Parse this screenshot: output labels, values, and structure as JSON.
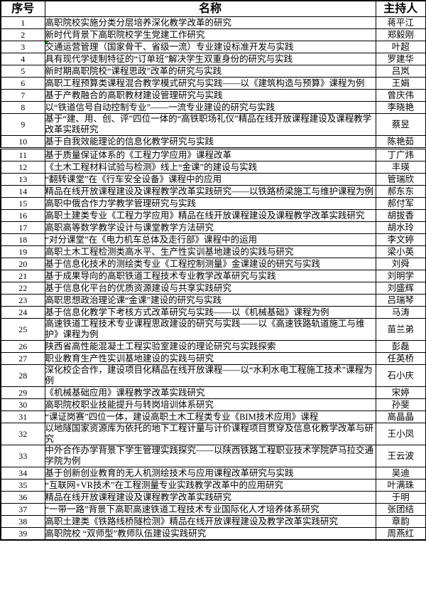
{
  "table": {
    "headers": [
      "序号",
      "名称",
      "主持人"
    ],
    "green_marker_row": 3,
    "thick_border_after_row": 10,
    "accent_marker_color": "#00882b",
    "rows": [
      {
        "no": "1",
        "title": "高职院校实施分类分层培养深化教学改革的研究",
        "host": "蒋平江"
      },
      {
        "no": "2",
        "title": "新时代背景下高职院校学生党建工作研究",
        "host": "郑毅刚"
      },
      {
        "no": "3",
        "title": "交通运营管理（国家骨干、省级一流）专业建设标准开发与实践",
        "host": "叶超"
      },
      {
        "no": "4",
        "title": "具有现代学徒制特征的“订单班”解决学生双重身份的研究与实践",
        "host": "罗建华"
      },
      {
        "no": "5",
        "title": "新时期高职院校“课程思政”改革的研究与实践",
        "host": "吕岚"
      },
      {
        "no": "6",
        "title": "高职工程预算类课程混合教学模式研究与实践——以《建筑构造与预算》课程为例",
        "host": "王娟"
      },
      {
        "no": "7",
        "title": "基于产教融合的高职教材建设管理研究与实践",
        "host": "曾庆伟"
      },
      {
        "no": "8",
        "title": "以“铁道信号自动控制专业”——一流专业建设的研究与实践",
        "host": "李晓艳"
      },
      {
        "no": "9",
        "title": "基于“建、用、创、评”四位一体的“高铁职场礼仪”精品在线开放课程建设及课程教学改革实践研究",
        "host": "蔡昱"
      },
      {
        "no": "10",
        "title": "基于自我效能理论的信息化教学研究与实践",
        "host": "陈艳茹"
      },
      {
        "no": "11",
        "title": "基于质量保证体系的《工程力学应用》课程改革",
        "host": "丁广炜"
      },
      {
        "no": "12",
        "title": "《土木工程材料试验与检测》线上“金课”的建设与实践",
        "host": "丰瑛"
      },
      {
        "no": "13",
        "title": "“翻转课堂”在《行车安全设备》课程中的应用",
        "host": "管瑞欣"
      },
      {
        "no": "14",
        "title": "精品在线开放课程建设及课程教学改革实践研究——以铁路桥梁施工与维护课程为例",
        "host": "郝东东"
      },
      {
        "no": "15",
        "title": "高职中俄合作力学教学管理研究与实践",
        "host": "郝付军"
      },
      {
        "no": "16",
        "title": "高职土建类专业《工程力学应用》精品在线开放课程建设及课程教学改革实践研究",
        "host": "胡拔香"
      },
      {
        "no": "17",
        "title": "高职高等数学教学设计与课堂教学方法研究",
        "host": "胡水玲"
      },
      {
        "no": "18",
        "title": "“对分课堂”在《电力机车总体及走行部》课程中的运用",
        "host": "李文婷"
      },
      {
        "no": "19",
        "title": "高职土木工程检测类高水平、生产性实训基地建设的实践与研究",
        "host": "梁小英"
      },
      {
        "no": "20",
        "title": "基于信息化技术的测绘类专业《工程控制测量》金课建设的研究与实践",
        "host": "刘舜"
      },
      {
        "no": "21",
        "title": "基于成果导向的高职铁道工程技术专业教学改革研究与实践",
        "host": "刘明学"
      },
      {
        "no": "22",
        "title": "基于信息化平台的优质资源建设与共享实践研究",
        "host": "刘盛辉"
      },
      {
        "no": "23",
        "title": "高职思想政治理论课“金课”建设的研究与实践",
        "host": "吕瑞琴"
      },
      {
        "no": "24",
        "title": "基于信息化教学下考核方式改革研究与实践——以《机械基础》课程为例",
        "host": "马涛"
      },
      {
        "no": "25",
        "title": "高速铁道工程技术专业课程思政建设的研究与实践——以《高速铁路轨道施工与维护》课程为例",
        "host": "苗兰弟"
      },
      {
        "no": "26",
        "title": "陕西省高性能混凝土工程实验室建设的理论研究与实践探索",
        "host": "彭磊"
      },
      {
        "no": "27",
        "title": "职业教育生产性实训基地建设的实践与研究",
        "host": "任英桥"
      },
      {
        "no": "28",
        "title": "深化校企合作，建设项目化精品在线开放课程——以“水利水电工程施工技术”课程为例",
        "host": "石小庆"
      },
      {
        "no": "29",
        "title": "《机械基础应用》课程教学改革实践研究",
        "host": "宋婷"
      },
      {
        "no": "30",
        "title": "高职院校职业技能提升与转岗培训体系研究",
        "host": "孙斐"
      },
      {
        "no": "31",
        "title": "“课证岗赛”四位一体，建设高职土木工程类专业《BIM技术应用》课程",
        "host": "高晶晶"
      },
      {
        "no": "32",
        "title": "以地隧国家资源库为依托的地下工程计量与计价课程项目贯穿及信息化教学改革与研究",
        "host": "王小凤"
      },
      {
        "no": "33",
        "title": "中外合作办学背景下学生管理实践探究——以陕西铁路工程职业技术学院萨马拉交通学院为例",
        "host": "王云波"
      },
      {
        "no": "34",
        "title": "基于创新创业教育的无人机测绘技术与应用课程改革研究与实践",
        "host": "吴迪"
      },
      {
        "no": "35",
        "title": "“互联网+VR技术”在工程测量专业实践教学改革中的应用研究",
        "host": "叶满珠"
      },
      {
        "no": "36",
        "title": "精品在线开放课程建设及课程教学改革实践研究",
        "host": "于明"
      },
      {
        "no": "37",
        "title": "“一带一路”背景下高职高速铁道工程技术专业国际化人才培养体系研究",
        "host": "张团结"
      },
      {
        "no": "38",
        "title": "高职土建类《铁路线桥隧检测》精品在线开放课程建设及教学改革实践研究",
        "host": "章韵"
      },
      {
        "no": "39",
        "title": "高职院校 “双师型”教师队伍建设实践研究",
        "host": "周燕红"
      }
    ]
  }
}
